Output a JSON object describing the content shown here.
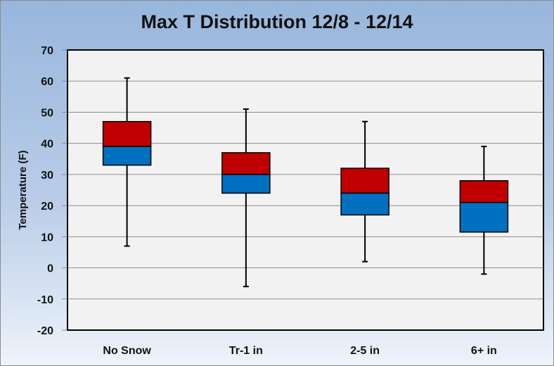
{
  "chart_data": {
    "type": "box",
    "title": "Max T Distribution 12/8 - 12/14",
    "xlabel": "",
    "ylabel": "Temperature (F)",
    "ylim": [
      -20,
      70
    ],
    "yticks": [
      -20,
      -10,
      0,
      10,
      20,
      30,
      40,
      50,
      60,
      70
    ],
    "grid": true,
    "categories": [
      "No Snow",
      "Tr-1 in",
      "2-5 in",
      "6+ in"
    ],
    "boxes": [
      {
        "min": 7,
        "q1": 33,
        "median": 39,
        "q3": 47,
        "max": 61
      },
      {
        "min": -6,
        "q1": 24,
        "median": 30,
        "q3": 37,
        "max": 51
      },
      {
        "min": 2,
        "q1": 17,
        "median": 24,
        "q3": 32,
        "max": 47
      },
      {
        "min": -2,
        "q1": 11.5,
        "median": 21,
        "q3": 28,
        "max": 39
      }
    ],
    "colors": {
      "upper_box": "#c00000",
      "lower_box": "#0070c0",
      "plot_bg": "#f2f2f2",
      "grid": "#8c8c8c"
    }
  }
}
